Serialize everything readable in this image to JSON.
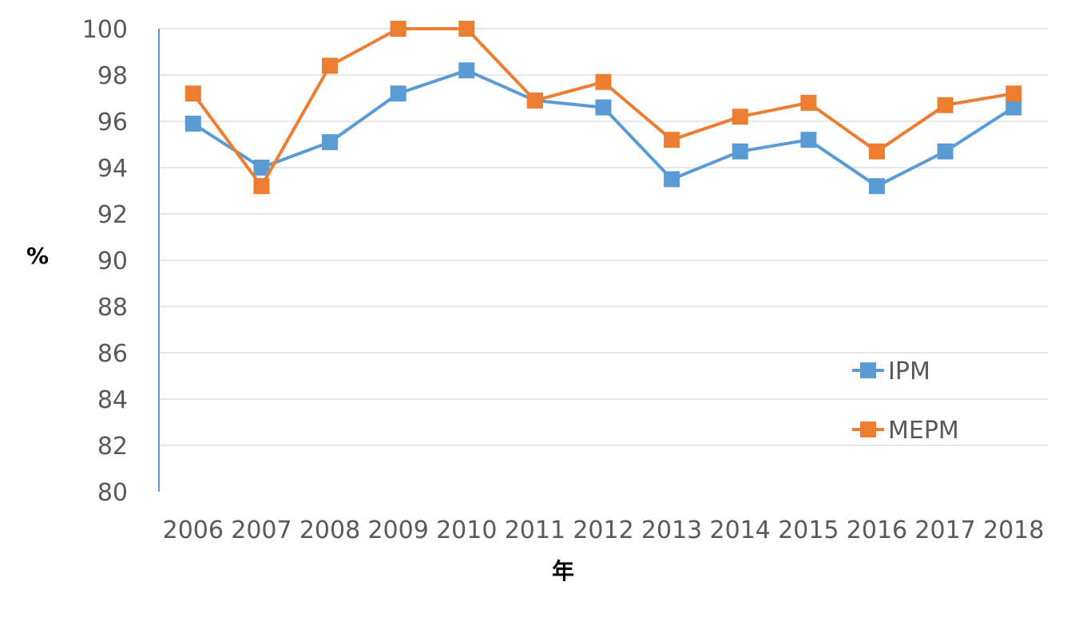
{
  "chart_data": {
    "type": "line",
    "xlabel": "年",
    "ylabel": "%",
    "categories": [
      "2006",
      "2007",
      "2008",
      "2009",
      "2010",
      "2011",
      "2012",
      "2013",
      "2014",
      "2015",
      "2016",
      "2017",
      "2018"
    ],
    "series": [
      {
        "name": "IPM",
        "color": "#5B9BD5",
        "marker": "square",
        "values": [
          95.9,
          94.0,
          95.1,
          97.2,
          98.2,
          96.9,
          96.6,
          93.5,
          94.7,
          95.2,
          93.2,
          94.7,
          96.6
        ]
      },
      {
        "name": "MEPM",
        "color": "#ED7D31",
        "marker": "square",
        "values": [
          97.2,
          93.2,
          98.4,
          100.0,
          100.0,
          96.9,
          97.7,
          95.2,
          96.2,
          96.8,
          94.7,
          96.7,
          97.2
        ]
      }
    ],
    "ylim": [
      80,
      100
    ],
    "yticks": [
      "80",
      "82",
      "84",
      "86",
      "88",
      "90",
      "92",
      "94",
      "96",
      "98",
      "100"
    ],
    "grid": true,
    "legend": "right"
  }
}
